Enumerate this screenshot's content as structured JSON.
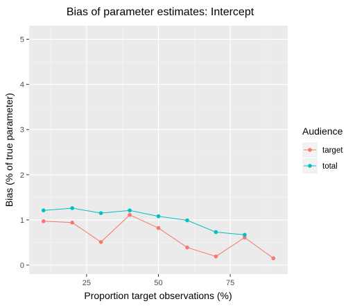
{
  "chart_data": {
    "type": "line",
    "title": "Bias of parameter estimates: Intercept",
    "xlabel": "Proportion target observations (%)",
    "ylabel": "Bias (% of true parameter)",
    "xlim": [
      5,
      95
    ],
    "ylim": [
      -0.2,
      5.3
    ],
    "x_ticks": [
      25,
      50,
      75
    ],
    "y_ticks": [
      0,
      1,
      2,
      3,
      4,
      5
    ],
    "grid": true,
    "legend_title": "Audience",
    "legend_position": "right",
    "series": [
      {
        "name": "target",
        "color": "#F8766D",
        "x": [
          10,
          20,
          30,
          40,
          50,
          60,
          70,
          80,
          90
        ],
        "y": [
          0.97,
          0.94,
          0.51,
          1.11,
          0.82,
          0.39,
          0.19,
          0.61,
          0.15
        ]
      },
      {
        "name": "total",
        "color": "#00BFC4",
        "x": [
          10,
          20,
          30,
          40,
          50,
          60,
          70,
          80
        ],
        "y": [
          1.21,
          1.26,
          1.15,
          1.21,
          1.08,
          0.99,
          0.73,
          0.67
        ]
      }
    ]
  }
}
